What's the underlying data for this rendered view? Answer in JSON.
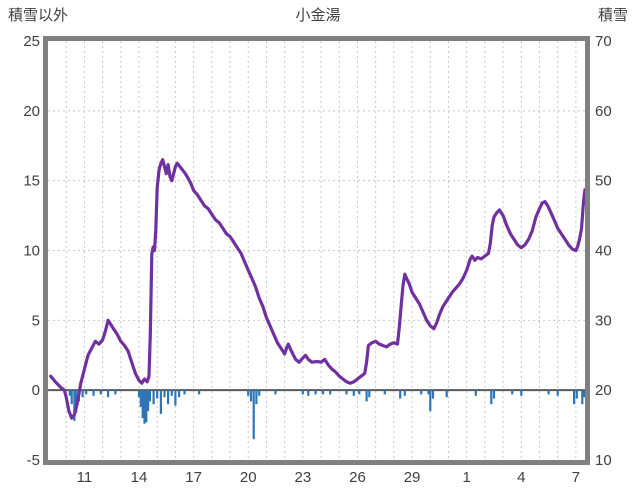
{
  "header": {
    "left": "積雪以外",
    "center": "小金湯",
    "right": "積雪"
  },
  "chart_data": {
    "type": "line",
    "title": "小金湯",
    "colors": {
      "line": "#7030A0",
      "bar": "#2E75B6",
      "grid": "#C8C8C8",
      "frame": "#808080",
      "zero": "#595959",
      "text": "#404040"
    },
    "left_axis": {
      "label": "積雪以外",
      "min": -5,
      "max": 25,
      "ticks": [
        -5,
        0,
        5,
        10,
        15,
        20,
        25
      ]
    },
    "right_axis": {
      "label": "積雪",
      "min": 10,
      "max": 70,
      "ticks": [
        10,
        20,
        30,
        40,
        50,
        60,
        70
      ]
    },
    "x_axis": {
      "domain": [
        9,
        38.5
      ],
      "tick_days": [
        11,
        14,
        17,
        20,
        23,
        26,
        29,
        32,
        35,
        38
      ],
      "tick_labels": [
        "11",
        "14",
        "17",
        "20",
        "23",
        "26",
        "29",
        "1",
        "4",
        "7"
      ],
      "grid_step": 1
    },
    "series": [
      {
        "name": "積雪",
        "render": "line",
        "axis": "right",
        "color": "#7030A0",
        "points": [
          [
            9.15,
            22
          ],
          [
            9.4,
            21.2
          ],
          [
            9.7,
            20.4
          ],
          [
            9.9,
            20
          ],
          [
            10.0,
            19
          ],
          [
            10.15,
            17
          ],
          [
            10.3,
            16
          ],
          [
            10.45,
            16.5
          ],
          [
            10.6,
            18
          ],
          [
            10.8,
            21
          ],
          [
            11.0,
            23
          ],
          [
            11.2,
            25
          ],
          [
            11.4,
            26
          ],
          [
            11.6,
            27
          ],
          [
            11.8,
            26.6
          ],
          [
            12.0,
            27.2
          ],
          [
            12.15,
            28.4
          ],
          [
            12.3,
            30
          ],
          [
            12.45,
            29.4
          ],
          [
            12.6,
            28.8
          ],
          [
            12.8,
            28
          ],
          [
            13.0,
            27
          ],
          [
            13.2,
            26.4
          ],
          [
            13.4,
            25.6
          ],
          [
            13.6,
            24
          ],
          [
            13.8,
            22.4
          ],
          [
            14.0,
            21.4
          ],
          [
            14.15,
            21
          ],
          [
            14.3,
            21.6
          ],
          [
            14.45,
            21.2
          ],
          [
            14.55,
            22
          ],
          [
            14.62,
            28
          ],
          [
            14.7,
            39.5
          ],
          [
            14.78,
            40.5
          ],
          [
            14.85,
            40
          ],
          [
            14.92,
            43
          ],
          [
            15.0,
            49
          ],
          [
            15.1,
            51.5
          ],
          [
            15.2,
            52.5
          ],
          [
            15.3,
            53
          ],
          [
            15.4,
            52
          ],
          [
            15.5,
            51
          ],
          [
            15.6,
            52.3
          ],
          [
            15.7,
            50.6
          ],
          [
            15.8,
            50
          ],
          [
            15.9,
            51
          ],
          [
            16.0,
            52
          ],
          [
            16.1,
            52.5
          ],
          [
            16.25,
            52
          ],
          [
            16.4,
            51.5
          ],
          [
            16.55,
            51
          ],
          [
            16.7,
            50.3
          ],
          [
            16.85,
            49.6
          ],
          [
            17.0,
            48.6
          ],
          [
            17.2,
            48
          ],
          [
            17.4,
            47.2
          ],
          [
            17.6,
            46.4
          ],
          [
            17.8,
            46
          ],
          [
            18.0,
            45.2
          ],
          [
            18.2,
            44.4
          ],
          [
            18.4,
            44
          ],
          [
            18.6,
            43.2
          ],
          [
            18.8,
            42.4
          ],
          [
            19.0,
            42
          ],
          [
            19.2,
            41.2
          ],
          [
            19.4,
            40.4
          ],
          [
            19.6,
            39.6
          ],
          [
            19.8,
            38.4
          ],
          [
            20.0,
            37.2
          ],
          [
            20.2,
            36
          ],
          [
            20.4,
            34.8
          ],
          [
            20.6,
            33.2
          ],
          [
            20.8,
            32
          ],
          [
            21.0,
            30.4
          ],
          [
            21.2,
            29.2
          ],
          [
            21.4,
            28
          ],
          [
            21.6,
            26.8
          ],
          [
            21.8,
            26
          ],
          [
            22.0,
            25.2
          ],
          [
            22.1,
            26
          ],
          [
            22.2,
            26.6
          ],
          [
            22.3,
            26
          ],
          [
            22.45,
            25.2
          ],
          [
            22.6,
            24.4
          ],
          [
            22.8,
            24
          ],
          [
            23.0,
            24.6
          ],
          [
            23.15,
            25
          ],
          [
            23.3,
            24.4
          ],
          [
            23.5,
            24
          ],
          [
            23.8,
            24.1
          ],
          [
            24.0,
            24
          ],
          [
            24.2,
            24.4
          ],
          [
            24.4,
            23.6
          ],
          [
            24.6,
            23
          ],
          [
            24.8,
            22.6
          ],
          [
            25.0,
            22
          ],
          [
            25.2,
            21.6
          ],
          [
            25.4,
            21.2
          ],
          [
            25.6,
            21
          ],
          [
            25.8,
            21.2
          ],
          [
            26.0,
            21.6
          ],
          [
            26.2,
            22
          ],
          [
            26.4,
            22.4
          ],
          [
            26.5,
            24
          ],
          [
            26.6,
            26.4
          ],
          [
            26.8,
            26.8
          ],
          [
            27.0,
            27
          ],
          [
            27.2,
            26.6
          ],
          [
            27.4,
            26.4
          ],
          [
            27.6,
            26.2
          ],
          [
            27.8,
            26.6
          ],
          [
            28.0,
            26.8
          ],
          [
            28.2,
            26.6
          ],
          [
            28.3,
            29
          ],
          [
            28.4,
            32
          ],
          [
            28.5,
            35
          ],
          [
            28.6,
            36.6
          ],
          [
            28.7,
            36
          ],
          [
            28.85,
            35.2
          ],
          [
            29.0,
            34
          ],
          [
            29.2,
            33.2
          ],
          [
            29.4,
            32.4
          ],
          [
            29.6,
            31.2
          ],
          [
            29.8,
            30
          ],
          [
            30.0,
            29.2
          ],
          [
            30.2,
            28.8
          ],
          [
            30.35,
            29.6
          ],
          [
            30.5,
            30.8
          ],
          [
            30.7,
            32
          ],
          [
            31.0,
            33.2
          ],
          [
            31.2,
            34
          ],
          [
            31.4,
            34.6
          ],
          [
            31.6,
            35.2
          ],
          [
            31.8,
            36
          ],
          [
            32.0,
            37.2
          ],
          [
            32.2,
            38.8
          ],
          [
            32.3,
            39.2
          ],
          [
            32.45,
            38.6
          ],
          [
            32.6,
            39
          ],
          [
            32.8,
            38.8
          ],
          [
            33.0,
            39.2
          ],
          [
            33.2,
            39.6
          ],
          [
            33.3,
            41
          ],
          [
            33.4,
            43.6
          ],
          [
            33.5,
            44.8
          ],
          [
            33.65,
            45.4
          ],
          [
            33.8,
            45.8
          ],
          [
            34.0,
            45
          ],
          [
            34.2,
            43.6
          ],
          [
            34.4,
            42.4
          ],
          [
            34.6,
            41.6
          ],
          [
            34.8,
            40.8
          ],
          [
            35.0,
            40.4
          ],
          [
            35.2,
            40.8
          ],
          [
            35.4,
            41.6
          ],
          [
            35.6,
            42.8
          ],
          [
            35.8,
            44.8
          ],
          [
            36.0,
            46
          ],
          [
            36.15,
            46.8
          ],
          [
            36.3,
            47
          ],
          [
            36.45,
            46.4
          ],
          [
            36.6,
            45.6
          ],
          [
            36.8,
            44.4
          ],
          [
            37.0,
            43.2
          ],
          [
            37.2,
            42.4
          ],
          [
            37.4,
            41.6
          ],
          [
            37.6,
            40.8
          ],
          [
            37.8,
            40.2
          ],
          [
            38.0,
            40
          ],
          [
            38.1,
            40.6
          ],
          [
            38.2,
            41.6
          ],
          [
            38.3,
            43
          ],
          [
            38.35,
            44.6
          ],
          [
            38.4,
            46.4
          ],
          [
            38.45,
            47.8
          ],
          [
            38.5,
            48.7
          ]
        ]
      },
      {
        "name": "積雪以外",
        "render": "bar",
        "axis": "left",
        "color": "#2E75B6",
        "points": [
          [
            10.2,
            -0.4
          ],
          [
            10.3,
            -1.0
          ],
          [
            10.45,
            -2.2
          ],
          [
            10.55,
            -1.6
          ],
          [
            10.7,
            -0.8
          ],
          [
            10.9,
            -0.5
          ],
          [
            11.1,
            -0.3
          ],
          [
            11.5,
            -0.4
          ],
          [
            11.9,
            -0.3
          ],
          [
            12.3,
            -0.5
          ],
          [
            12.7,
            -0.3
          ],
          [
            14.0,
            -0.5
          ],
          [
            14.1,
            -1.2
          ],
          [
            14.2,
            -2.0
          ],
          [
            14.3,
            -2.4
          ],
          [
            14.4,
            -2.3
          ],
          [
            14.5,
            -1.5
          ],
          [
            14.6,
            -0.8
          ],
          [
            14.8,
            -1.0
          ],
          [
            15.0,
            -0.6
          ],
          [
            15.2,
            -1.7
          ],
          [
            15.4,
            -0.5
          ],
          [
            15.6,
            -1.0
          ],
          [
            15.8,
            -0.4
          ],
          [
            16.0,
            -1.1
          ],
          [
            16.2,
            -0.5
          ],
          [
            16.5,
            -0.3
          ],
          [
            17.3,
            -0.3
          ],
          [
            20.0,
            -0.4
          ],
          [
            20.15,
            -0.8
          ],
          [
            20.3,
            -3.5
          ],
          [
            20.45,
            -1.0
          ],
          [
            20.6,
            -0.4
          ],
          [
            21.5,
            -0.3
          ],
          [
            23.0,
            -0.3
          ],
          [
            23.3,
            -0.4
          ],
          [
            23.7,
            -0.3
          ],
          [
            24.1,
            -0.3
          ],
          [
            24.5,
            -0.3
          ],
          [
            25.4,
            -0.3
          ],
          [
            25.8,
            -0.4
          ],
          [
            26.1,
            -0.3
          ],
          [
            26.5,
            -0.8
          ],
          [
            26.65,
            -0.5
          ],
          [
            27.5,
            -0.3
          ],
          [
            28.35,
            -0.6
          ],
          [
            28.6,
            -0.4
          ],
          [
            29.5,
            -0.3
          ],
          [
            29.9,
            -0.3
          ],
          [
            30.0,
            -1.5
          ],
          [
            30.15,
            -0.6
          ],
          [
            30.9,
            -0.5
          ],
          [
            32.5,
            -0.4
          ],
          [
            33.35,
            -1.0
          ],
          [
            33.5,
            -0.6
          ],
          [
            34.5,
            -0.3
          ],
          [
            35.0,
            -0.4
          ],
          [
            36.5,
            -0.3
          ],
          [
            37.0,
            -0.4
          ],
          [
            37.9,
            -1.0
          ],
          [
            38.05,
            -0.6
          ],
          [
            38.35,
            -1.0
          ],
          [
            38.45,
            -0.5
          ]
        ]
      }
    ]
  }
}
